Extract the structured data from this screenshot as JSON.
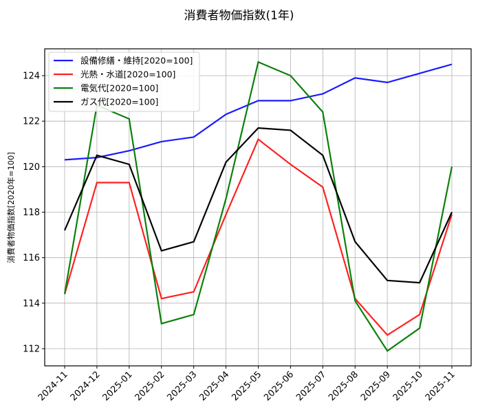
{
  "title": "消費者物価指数(1年)",
  "chart_data": {
    "type": "line",
    "title": "消費者物価指数(1年)",
    "xlabel": "",
    "ylabel": "消費者物価指数[2020年=100]",
    "ylim": [
      111.3,
      125.2
    ],
    "yticks": [
      112,
      114,
      116,
      118,
      120,
      122,
      124
    ],
    "grid": true,
    "legend_position": "upper left",
    "categories": [
      "2024-11",
      "2024-12",
      "2025-01",
      "2025-02",
      "2025-03",
      "2025-04",
      "2025-05",
      "2025-06",
      "2025-07",
      "2025-08",
      "2025-09",
      "2025-10",
      "2025-11"
    ],
    "series": [
      {
        "name": "設備修繕・維持[2020=100]",
        "color": "#1a1aff",
        "values": [
          120.3,
          120.4,
          120.7,
          121.1,
          121.3,
          122.3,
          122.9,
          122.9,
          123.2,
          123.9,
          123.7,
          124.1,
          124.5
        ]
      },
      {
        "name": "光熱・水道[2020=100]",
        "color": "#ff2020",
        "values": [
          114.4,
          119.3,
          119.3,
          114.2,
          114.5,
          117.9,
          121.2,
          120.1,
          119.1,
          114.2,
          112.6,
          113.5,
          117.9
        ]
      },
      {
        "name": "電気代[2020=100]",
        "color": "#0a800a",
        "values": [
          114.4,
          122.7,
          122.1,
          113.1,
          113.5,
          118.6,
          124.6,
          124.0,
          122.4,
          114.1,
          111.9,
          112.9,
          120.0
        ]
      },
      {
        "name": "ガス代[2020=100]",
        "color": "#000000",
        "values": [
          117.2,
          120.5,
          120.1,
          116.3,
          116.7,
          120.2,
          121.7,
          121.6,
          120.5,
          116.7,
          115.0,
          114.9,
          118.0
        ]
      }
    ]
  }
}
